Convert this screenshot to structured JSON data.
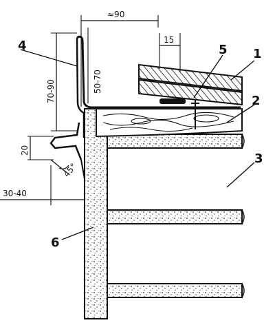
{
  "callouts": [
    "1",
    "2",
    "3",
    "4",
    "5",
    "6"
  ],
  "dimensions": {
    "top_width": "≈90",
    "overlap": "15",
    "wall_height_left": "70-90",
    "wall_height_inner": "50-70",
    "drip_height": "20",
    "drip_angle": "45°",
    "drip_offset": "30-40"
  },
  "colors": {
    "ink": "#111111",
    "paper": "#ffffff"
  }
}
